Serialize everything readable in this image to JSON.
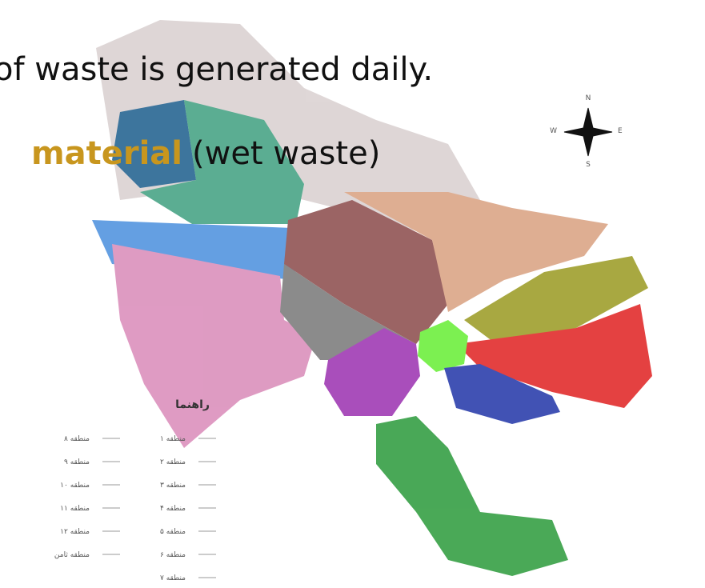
{
  "slide": {
    "line1": "of waste is generated daily.",
    "highlight": "material",
    "line2_rest": "(wet waste)"
  },
  "map": {
    "legend_title": "راهنما",
    "legend_right": [
      "منطقه ۱",
      "منطقه ۲",
      "منطقه ۳",
      "منطقه ۴",
      "منطقه ۵",
      "منطقه ۶",
      "منطقه ۷"
    ],
    "legend_left": [
      "منطقه ۸",
      "منطقه ۹",
      "منطقه ۱۰",
      "منطقه ۱۱",
      "منطقه ۱۲",
      "منطقه ثامن"
    ],
    "compass": [
      "N",
      "E",
      "S",
      "W"
    ]
  }
}
